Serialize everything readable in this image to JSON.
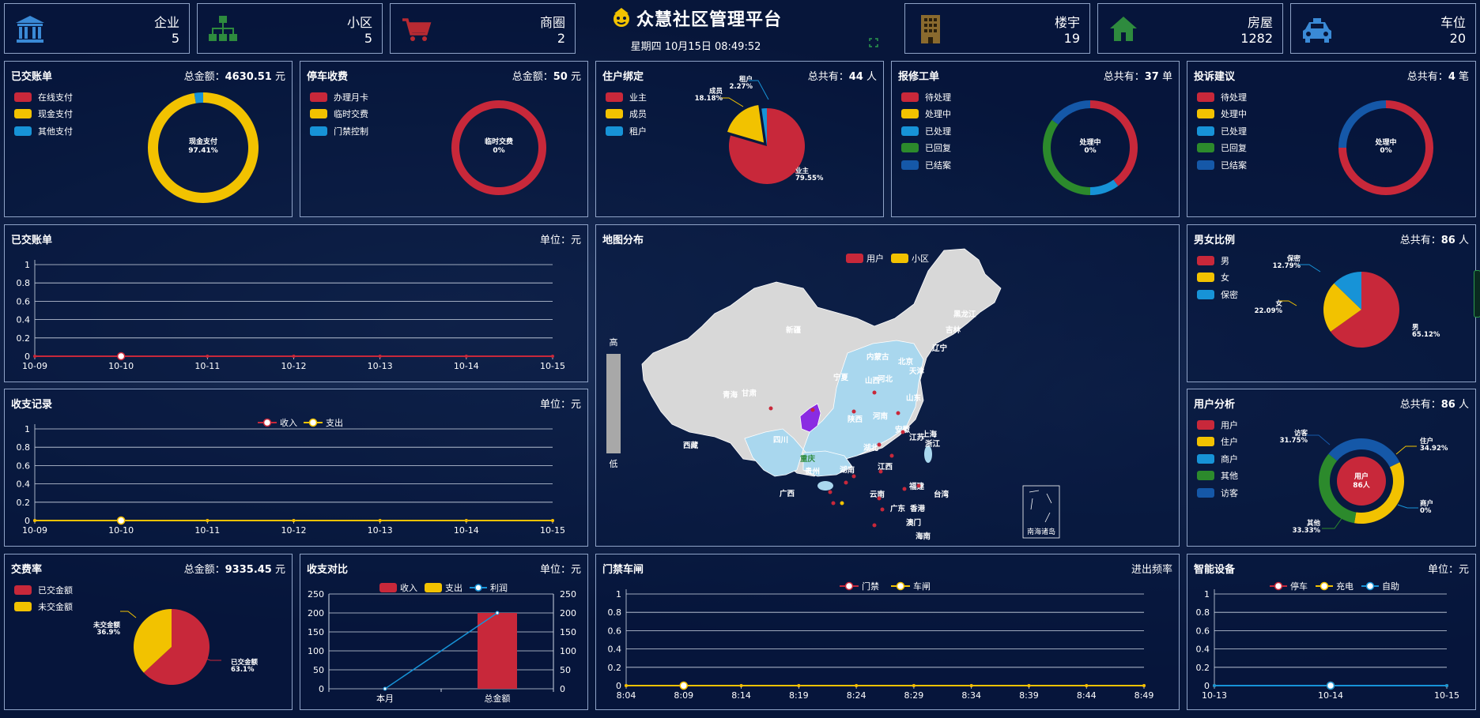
{
  "header": {
    "title": "众慧社区管理平台",
    "datetime": "星期四 10月15日 08:49:52"
  },
  "stats": [
    {
      "id": "enterprise",
      "label": "企业",
      "value": "5",
      "icon": "bank-icon",
      "color": "#3a8ad6"
    },
    {
      "id": "community",
      "label": "小区",
      "value": "5",
      "icon": "org-tree-icon",
      "color": "#2e8b3e"
    },
    {
      "id": "business",
      "label": "商圈",
      "value": "2",
      "icon": "cart-icon",
      "color": "#b82a32"
    },
    {
      "id": "building",
      "label": "楼宇",
      "value": "19",
      "icon": "building-icon",
      "color": "#8a6a2e"
    },
    {
      "id": "house",
      "label": "房屋",
      "value": "1282",
      "icon": "house-icon",
      "color": "#2e8b3e"
    },
    {
      "id": "parking",
      "label": "车位",
      "value": "20",
      "icon": "car-icon",
      "color": "#3a8ad6"
    }
  ],
  "colors": {
    "red": "#c8283a",
    "yellow": "#f2c200",
    "blue": "#1793d7",
    "green": "#2c8a2c",
    "darkblue": "#1558a8"
  },
  "panels": {
    "paid_bills": {
      "title": "已交账单",
      "info_prefix": "总金额：",
      "info_value": "4630.51",
      "info_unit": " 元",
      "legend": [
        "在线支付",
        "现金支付",
        "其他支付"
      ],
      "center_label": "现金支付",
      "center_pct": "97.41%"
    },
    "parking_fee": {
      "title": "停车收费",
      "info_prefix": "总金额：",
      "info_value": "50",
      "info_unit": " 元",
      "legend": [
        "办理月卡",
        "临时交费",
        "门禁控制"
      ],
      "center_label": "临时交费",
      "center_pct": "0%"
    },
    "resident_bind": {
      "title": "住户绑定",
      "info_prefix": "总共有：",
      "info_value": "44",
      "info_unit": " 人",
      "legend": [
        "业主",
        "成员",
        "租户"
      ],
      "labels": [
        {
          "name": "租户",
          "pct": "2.27%"
        },
        {
          "name": "成员",
          "pct": "18.18%"
        },
        {
          "name": "业主",
          "pct": "79.55%"
        }
      ]
    },
    "repair_orders": {
      "title": "报修工单",
      "info_prefix": "总共有：",
      "info_value": "37",
      "info_unit": " 单",
      "legend": [
        "待处理",
        "处理中",
        "已处理",
        "已回复",
        "已结案"
      ],
      "center_label": "处理中",
      "center_pct": "0%"
    },
    "complaints": {
      "title": "投诉建议",
      "info_prefix": "总共有：",
      "info_value": "4",
      "info_unit": " 笔",
      "legend": [
        "待处理",
        "处理中",
        "已处理",
        "已回复",
        "已结案"
      ],
      "center_label": "处理中",
      "center_pct": "0%"
    },
    "paid_bills_line": {
      "title": "已交账单",
      "info": "单位：元"
    },
    "income_expense": {
      "title": "收支记录",
      "info": "单位：元",
      "legend": [
        "收入",
        "支出"
      ]
    },
    "map": {
      "title": "地图分布",
      "legend": [
        "用户",
        "小区"
      ],
      "scale_high": "高",
      "scale_low": "低",
      "provinces": [
        "新疆",
        "西藏",
        "青海",
        "甘肃",
        "内蒙古",
        "黑龙江",
        "吉林",
        "辽宁",
        "宁夏",
        "陕西",
        "山西",
        "河北",
        "北京",
        "天津",
        "山东",
        "河南",
        "四川",
        "重庆",
        "湖北",
        "安徽",
        "江苏",
        "上海",
        "浙江",
        "贵州",
        "湖南",
        "江西",
        "福建",
        "云南",
        "广西",
        "广东",
        "香港",
        "澳门",
        "海南",
        "台湾"
      ],
      "inset": "南海诸岛"
    },
    "gender": {
      "title": "男女比例",
      "info_prefix": "总共有：",
      "info_value": "86",
      "info_unit": " 人",
      "legend": [
        "男",
        "女",
        "保密"
      ],
      "labels": [
        {
          "name": "保密",
          "pct": "12.79%"
        },
        {
          "name": "女",
          "pct": "22.09%"
        },
        {
          "name": "男",
          "pct": "65.12%"
        }
      ]
    },
    "user_analysis": {
      "title": "用户分析",
      "info_prefix": "总共有：",
      "info_value": "86",
      "info_unit": " 人",
      "legend": [
        "用户",
        "住户",
        "商户",
        "其他",
        "访客"
      ],
      "center_label": "用户",
      "center_value": "86人",
      "labels": [
        {
          "name": "访客",
          "pct": "31.75%"
        },
        {
          "name": "住户",
          "pct": "34.92%"
        },
        {
          "name": "商户",
          "pct": "0%"
        },
        {
          "name": "其他",
          "pct": "33.33%"
        }
      ]
    },
    "pay_rate": {
      "title": "交费率",
      "info_prefix": "总金额：",
      "info_value": "9335.45",
      "info_unit": " 元",
      "legend": [
        "已交金额",
        "未交金额"
      ],
      "labels": [
        {
          "name": "未交金额",
          "pct": "36.9%"
        },
        {
          "name": "已交金额",
          "pct": "63.1%"
        }
      ]
    },
    "income_compare": {
      "title": "收支对比",
      "info": "单位：元",
      "legend": [
        "收入",
        "支出",
        "利润"
      ]
    },
    "gate_vehicle": {
      "title": "门禁车闸",
      "info": "进出频率",
      "legend": [
        "门禁",
        "车闸"
      ]
    },
    "smart_device": {
      "title": "智能设备",
      "info": "单位：元",
      "legend": [
        "停车",
        "充电",
        "自助"
      ]
    }
  },
  "chart_data": [
    {
      "id": "paid_bills_donut",
      "type": "pie",
      "labels": [
        "在线支付",
        "现金支付",
        "其他支付"
      ],
      "values": [
        0,
        97.41,
        2.59
      ]
    },
    {
      "id": "parking_fee_donut",
      "type": "pie",
      "labels": [
        "办理月卡",
        "临时交费",
        "门禁控制"
      ],
      "values": [
        100,
        0,
        0
      ]
    },
    {
      "id": "resident_bind_pie",
      "type": "pie",
      "labels": [
        "业主",
        "成员",
        "租户"
      ],
      "values": [
        79.55,
        18.18,
        2.27
      ]
    },
    {
      "id": "repair_orders_donut",
      "type": "pie",
      "labels": [
        "待处理",
        "处理中",
        "已处理",
        "已回复",
        "已结案"
      ],
      "values": [
        40,
        0,
        10,
        35,
        15
      ]
    },
    {
      "id": "complaints_donut",
      "type": "pie",
      "labels": [
        "待处理",
        "处理中",
        "已处理",
        "已回复",
        "已结案"
      ],
      "values": [
        75,
        0,
        0,
        0,
        25
      ]
    },
    {
      "id": "paid_bills_line_chart",
      "type": "line",
      "x": [
        "10-09",
        "10-10",
        "10-11",
        "10-12",
        "10-13",
        "10-14",
        "10-15"
      ],
      "yticks": [
        "0",
        "0.2",
        "0.4",
        "0.6",
        "0.8",
        "1"
      ],
      "ylim": [
        0,
        1
      ],
      "series": [
        {
          "values": [
            0,
            0,
            0,
            0,
            0,
            0,
            0
          ]
        }
      ]
    },
    {
      "id": "income_expense_chart",
      "type": "line",
      "x": [
        "10-09",
        "10-10",
        "10-11",
        "10-12",
        "10-13",
        "10-14",
        "10-15"
      ],
      "yticks": [
        "0",
        "0.2",
        "0.4",
        "0.6",
        "0.8",
        "1"
      ],
      "ylim": [
        0,
        1
      ],
      "series": [
        {
          "name": "收入",
          "values": [
            0,
            0,
            0,
            0,
            0,
            0,
            0
          ]
        },
        {
          "name": "支出",
          "values": [
            0,
            0,
            0,
            0,
            0,
            0,
            0
          ]
        }
      ]
    },
    {
      "id": "gender_pie",
      "type": "pie",
      "labels": [
        "男",
        "女",
        "保密"
      ],
      "values": [
        65.12,
        22.09,
        12.79
      ]
    },
    {
      "id": "user_analysis_ring",
      "type": "pie",
      "labels": [
        "访客",
        "住户",
        "商户",
        "其他"
      ],
      "values": [
        31.75,
        34.92,
        0,
        33.33
      ]
    },
    {
      "id": "pay_rate_pie",
      "type": "pie",
      "labels": [
        "已交金额",
        "未交金额"
      ],
      "values": [
        63.1,
        36.9
      ]
    },
    {
      "id": "income_compare_chart",
      "type": "bar",
      "categories": [
        "本月",
        "总金额"
      ],
      "yticks": [
        "0",
        "50",
        "100",
        "150",
        "200",
        "250"
      ],
      "ylim": [
        0,
        250
      ],
      "series": [
        {
          "name": "收入",
          "values": [
            0,
            200
          ]
        },
        {
          "name": "支出",
          "values": [
            0,
            0
          ]
        },
        {
          "name": "利润",
          "values": [
            0,
            200
          ]
        }
      ]
    },
    {
      "id": "gate_vehicle_chart",
      "type": "line",
      "x": [
        "8:04",
        "8:09",
        "8:14",
        "8:19",
        "8:24",
        "8:29",
        "8:34",
        "8:39",
        "8:44",
        "8:49"
      ],
      "yticks": [
        "0",
        "0.2",
        "0.4",
        "0.6",
        "0.8",
        "1"
      ],
      "ylim": [
        0,
        1
      ],
      "series": [
        {
          "name": "门禁",
          "values": [
            0,
            0,
            0,
            0,
            0,
            0,
            0,
            0,
            0,
            0
          ]
        },
        {
          "name": "车闸",
          "values": [
            0,
            0,
            0,
            0,
            0,
            0,
            0,
            0,
            0,
            0
          ]
        }
      ]
    },
    {
      "id": "smart_device_chart",
      "type": "line",
      "x": [
        "10-13",
        "10-14",
        "10-15"
      ],
      "yticks": [
        "0",
        "0.2",
        "0.4",
        "0.6",
        "0.8",
        "1"
      ],
      "ylim": [
        0,
        1
      ],
      "series": [
        {
          "name": "停车",
          "values": [
            0,
            0,
            0
          ]
        },
        {
          "name": "充电",
          "values": [
            0,
            0,
            0
          ]
        },
        {
          "name": "自助",
          "values": [
            0,
            0,
            0
          ]
        }
      ]
    }
  ]
}
